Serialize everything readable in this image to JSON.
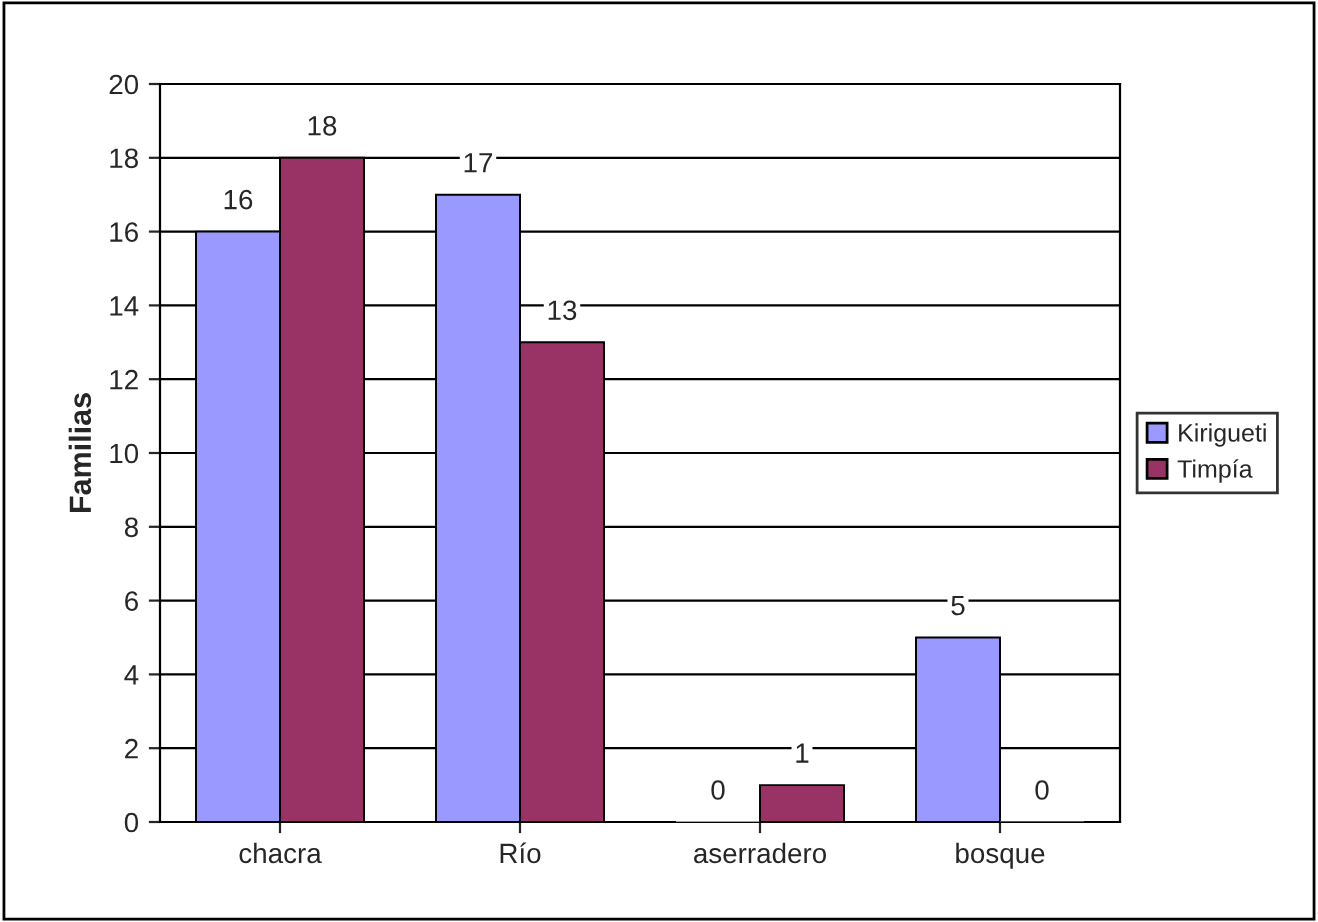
{
  "chart_data": {
    "type": "bar",
    "ylabel": "Familias",
    "categories": [
      "chacra",
      "Río",
      "aserradero",
      "bosque"
    ],
    "series": [
      {
        "name": "Kirigueti",
        "color": "#9999ff",
        "values": [
          16,
          17,
          0,
          5
        ]
      },
      {
        "name": "Timpía",
        "color": "#993366",
        "values": [
          18,
          13,
          1,
          0
        ]
      }
    ],
    "ylim": [
      0,
      20
    ],
    "yticks": [
      0,
      2,
      4,
      6,
      8,
      10,
      12,
      14,
      16,
      18,
      20
    ],
    "grid": "y",
    "legend": "right",
    "data_labels": true
  }
}
